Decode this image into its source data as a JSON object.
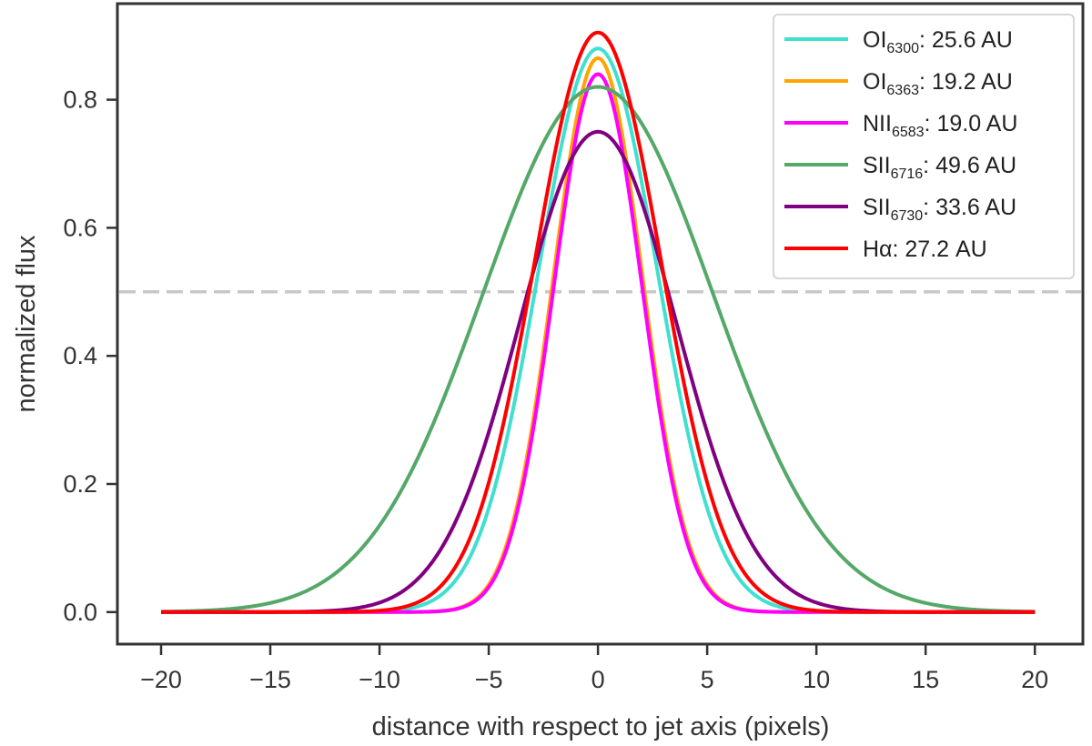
{
  "chart_data": {
    "type": "line",
    "title": "",
    "xlabel": "distance with respect to jet axis (pixels)",
    "ylabel": "normalized flux",
    "xlim": [
      -22,
      22.2
    ],
    "ylim": [
      -0.05,
      0.95
    ],
    "xticks": [
      -20,
      -15,
      -10,
      -5,
      0,
      5,
      10,
      15,
      20
    ],
    "xtick_labels": [
      "−20",
      "−15",
      "−10",
      "−5",
      "0",
      "5",
      "10",
      "15",
      "20"
    ],
    "yticks": [
      0.0,
      0.2,
      0.4,
      0.6,
      0.8
    ],
    "ytick_labels": [
      "0.0",
      "0.2",
      "0.4",
      "0.6",
      "0.8"
    ],
    "x_range": [
      -20,
      20
    ],
    "reference_line": {
      "y": 0.5,
      "style": "dashed",
      "color": "#c8c8c8"
    },
    "legend_position": "top-right",
    "series": [
      {
        "name": "OI6300: 25.6 AU",
        "label_main": "OI",
        "label_sub": "6300",
        "label_rest": ": 25.6 AU",
        "color": "#40e0d0",
        "peak": 0.88,
        "fwhm_pixels": 6.4,
        "shape": "gaussian"
      },
      {
        "name": "OI6363: 19.2 AU",
        "label_main": "OI",
        "label_sub": "6363",
        "label_rest": ": 19.2 AU",
        "color": "#ffa500",
        "peak": 0.865,
        "fwhm_pixels": 4.8,
        "shape": "gaussian"
      },
      {
        "name": "NII6583: 19.0 AU",
        "label_main": "NII",
        "label_sub": "6583",
        "label_rest": ": 19.0 AU",
        "color": "#ff00ff",
        "peak": 0.84,
        "fwhm_pixels": 4.75,
        "shape": "gaussian"
      },
      {
        "name": "SII6716: 49.6 AU",
        "label_main": "SII",
        "label_sub": "6716",
        "label_rest": ": 49.6 AU",
        "color": "#55a868",
        "peak": 0.82,
        "fwhm_pixels": 12.4,
        "shape": "gaussian"
      },
      {
        "name": "SII6730: 33.6 AU",
        "label_main": "SII",
        "label_sub": "6730",
        "label_rest": ": 33.6 AU",
        "color": "#800080",
        "peak": 0.75,
        "fwhm_pixels": 8.4,
        "shape": "gaussian"
      },
      {
        "name": "Hα: 27.2 AU",
        "label_main": "Hα",
        "label_sub": "",
        "label_rest": ": 27.2 AU",
        "color": "#ff0000",
        "peak": 0.905,
        "fwhm_pixels": 6.8,
        "shape": "gaussian"
      }
    ]
  }
}
